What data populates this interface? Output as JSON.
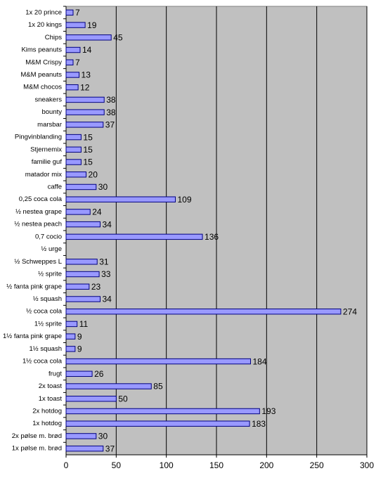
{
  "chart_data": {
    "type": "bar",
    "orientation": "horizontal",
    "categories": [
      "1x 20 prince",
      "1x 20 kings",
      "Chips",
      "Kims peanuts",
      "M&M Crispy",
      "M&M peanuts",
      "M&M chocos",
      "sneakers",
      "bounty",
      "marsbar",
      "Pingvinblanding",
      "Stjernemix",
      "familie guf",
      "matador mix",
      "caffe",
      "0,25 coca cola",
      "½ nestea grape",
      "½ nestea peach",
      "0,7 cocio",
      "½ urge",
      "½ Schweppes L",
      "½ sprite",
      "½ fanta pink grape",
      "½ squash",
      "½ coca cola",
      "1½ sprite",
      "1½ fanta pink grape",
      "1½ squash",
      "1½ coca cola",
      "frugt",
      "2x toast",
      "1x toast",
      "2x hotdog",
      "1x hotdog",
      "2x pølse m. brød",
      "1x pølse m. brød"
    ],
    "values": [
      7,
      19,
      45,
      14,
      7,
      13,
      12,
      38,
      38,
      37,
      15,
      15,
      15,
      20,
      30,
      109,
      24,
      34,
      136,
      null,
      31,
      33,
      23,
      34,
      274,
      11,
      9,
      9,
      184,
      26,
      85,
      50,
      193,
      183,
      30,
      37
    ],
    "color": "#9999ff",
    "xlim": [
      0,
      300
    ],
    "xticks": [
      0,
      50,
      100,
      150,
      200,
      250,
      300
    ],
    "grid": true
  }
}
